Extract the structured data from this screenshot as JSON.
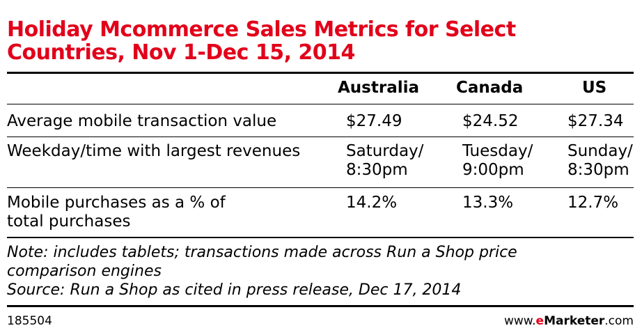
{
  "title": {
    "line1": "Holiday Mcommerce Sales Metrics for Select",
    "line2": "Countries, Nov 1-Dec 15, 2014"
  },
  "chart_data": {
    "type": "table",
    "columns": [
      "Australia",
      "Canada",
      "US"
    ],
    "rows": [
      {
        "label_lines": [
          "Average mobile transaction value"
        ],
        "values": [
          [
            "$27.49"
          ],
          [
            "$24.52"
          ],
          [
            "$27.34"
          ]
        ]
      },
      {
        "label_lines": [
          "Weekday/time with largest revenues"
        ],
        "values": [
          [
            "Saturday/",
            "8:30pm"
          ],
          [
            "Tuesday/",
            "9:00pm"
          ],
          [
            "Sunday/",
            "8:30pm"
          ]
        ]
      },
      {
        "label_lines": [
          "Mobile purchases as a % of",
          "total purchases"
        ],
        "values": [
          [
            "14.2%"
          ],
          [
            "13.3%"
          ],
          [
            "12.7%"
          ]
        ]
      }
    ]
  },
  "notes": {
    "note_line1": "Note: includes tablets; transactions made across Run a Shop price",
    "note_line2": "comparison engines",
    "source": "Source: Run a Shop as cited in press release, Dec 17, 2014"
  },
  "footer": {
    "chart_id": "185504",
    "brand_prefix": "www.",
    "brand_e": "e",
    "brand_name": "Marketer",
    "brand_suffix": ".com"
  },
  "colors": {
    "title": "#e2001a",
    "rules": "#000000",
    "brand_accent": "#e2001a"
  }
}
